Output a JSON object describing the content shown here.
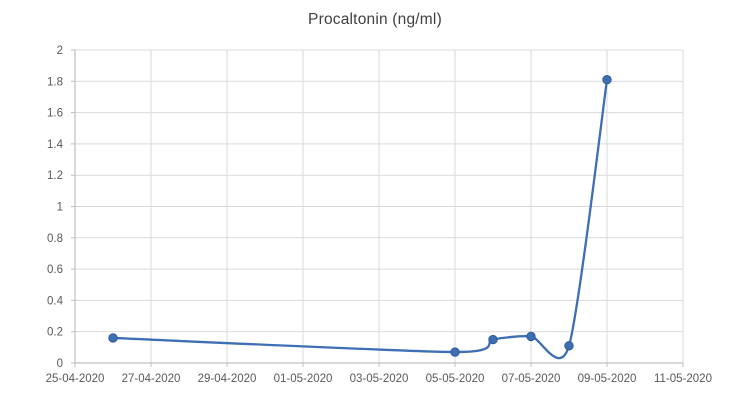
{
  "chart_data": {
    "type": "line",
    "title": "Procaltonin (ng/ml)",
    "legend": "none",
    "grid": true,
    "series": [
      {
        "name": "Procaltonin (ng/ml)",
        "smooth": true,
        "marker": "circle",
        "points": [
          {
            "date": "26-04-2020",
            "value": 0.16
          },
          {
            "date": "05-05-2020",
            "value": 0.07
          },
          {
            "date": "06-05-2020",
            "value": 0.15
          },
          {
            "date": "07-05-2020",
            "value": 0.17
          },
          {
            "date": "08-05-2020",
            "value": 0.11
          },
          {
            "date": "09-05-2020",
            "value": 1.81
          }
        ]
      }
    ],
    "x_axis": {
      "type": "date",
      "min": "25-04-2020",
      "max": "11-05-2020",
      "tick_interval_days": 2,
      "tick_labels": [
        "25-04-2020",
        "27-04-2020",
        "29-04-2020",
        "01-05-2020",
        "03-05-2020",
        "05-05-2020",
        "07-05-2020",
        "09-05-2020",
        "11-05-2020"
      ]
    },
    "y_axis": {
      "min": 0,
      "max": 2,
      "step": 0.2,
      "tick_labels": [
        "0",
        "0.2",
        "0.4",
        "0.6",
        "0.8",
        "1",
        "1.2",
        "1.4",
        "1.6",
        "1.8",
        "2"
      ]
    },
    "colors": {
      "line": "#3E6FB4",
      "marker_fill": "#3E6FB4",
      "marker_stroke": "#2E5A96",
      "gridline": "#D9D9D9",
      "axis_line": "#BFBFBF",
      "tick_label": "#595959",
      "title": "#404040",
      "background": "#FFFFFF"
    }
  }
}
